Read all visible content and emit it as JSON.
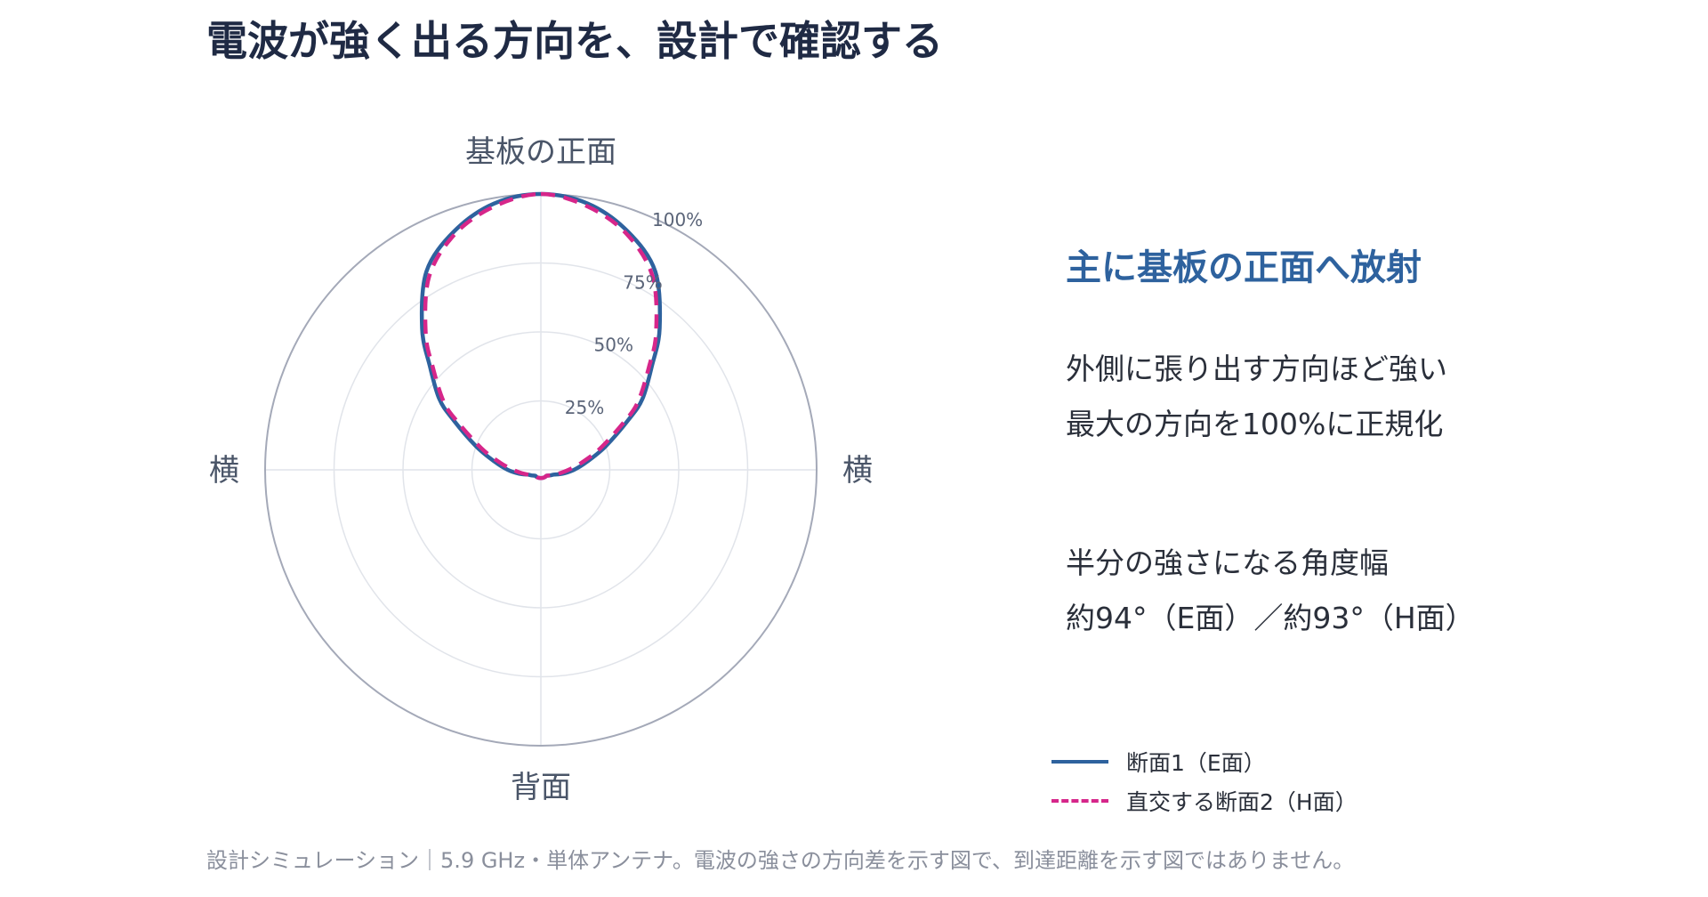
{
  "page": {
    "title": "電波が強く出る方向を、設計で確認する",
    "footer": "設計シミュレーション｜5.9 GHz・単体アンテナ。電波の強さの方向差を示す図で、到達距離を示す図ではありません。"
  },
  "side_panel": {
    "heading": "主に基板の正面へ放射",
    "notes": [
      "外側に張り出す方向ほど強い",
      "最大の方向を100%に正規化",
      "半分の強さになる角度幅",
      "約94°（E面）／約93°（H面）"
    ]
  },
  "colors": {
    "series_e": "#2e629e",
    "series_h": "#d6268a",
    "grid": "#e1e4ea",
    "outer_ring": "#a4a9b8",
    "heading_accent": "#2e629e"
  },
  "chart_data": {
    "type": "line",
    "coordinate_system": "polar",
    "direction_labels": {
      "top": "基板の正面",
      "bottom": "背面",
      "left": "横",
      "right": "横"
    },
    "radial_ticks": [
      {
        "value": 25,
        "label": "25%"
      },
      {
        "value": 50,
        "label": "50%"
      },
      {
        "value": 75,
        "label": "75%"
      },
      {
        "value": 100,
        "label": "100%"
      }
    ],
    "rlim": [
      0,
      100
    ],
    "grid": true,
    "legend_position": "bottom-right",
    "series": [
      {
        "name": "断面1（E面）",
        "style": "solid",
        "color_key": "series_e",
        "angles_deg": [
          0,
          10,
          20,
          30,
          40,
          47,
          55,
          60,
          70,
          80,
          90,
          100,
          110,
          120,
          135,
          150,
          165,
          180,
          195,
          210,
          225,
          240,
          250,
          260,
          270,
          280,
          290,
          300,
          305,
          313,
          320,
          330,
          340,
          350
        ],
        "values": [
          100,
          98,
          92,
          83,
          67,
          55,
          45,
          37,
          25,
          17,
          12,
          8,
          5,
          4,
          3,
          3,
          3,
          3,
          3,
          3,
          3,
          4,
          5,
          8,
          12,
          17,
          25,
          37,
          45,
          55,
          67,
          83,
          92,
          98
        ]
      },
      {
        "name": "直交する断面2（H面）",
        "style": "dashed",
        "color_key": "series_h",
        "angles_deg": [
          0,
          10,
          20,
          30,
          40,
          46.5,
          55,
          60,
          70,
          80,
          90,
          100,
          110,
          120,
          135,
          150,
          165,
          180,
          195,
          210,
          225,
          240,
          250,
          260,
          270,
          280,
          290,
          300,
          305,
          313.5,
          320,
          330,
          340,
          350
        ],
        "values": [
          100,
          97,
          91,
          81,
          65,
          54,
          43,
          35,
          23,
          15,
          10,
          7,
          5,
          4,
          3,
          3,
          3,
          3,
          3,
          3,
          3,
          4,
          5,
          7,
          10,
          15,
          23,
          35,
          43,
          54,
          65,
          81,
          91,
          97
        ]
      }
    ]
  }
}
